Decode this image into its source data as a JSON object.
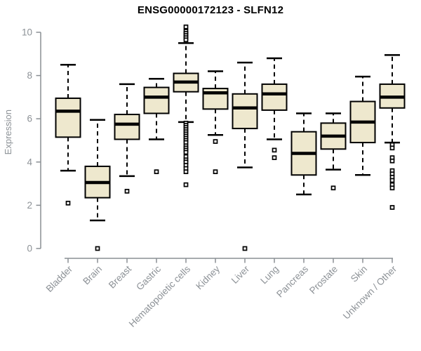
{
  "chart_data": {
    "type": "boxplot",
    "title": "ENSG00000172123 - SLFN12",
    "ylabel": "Expression",
    "xlabel": "",
    "ylim": [
      0,
      10
    ],
    "yticks": [
      0,
      2,
      4,
      6,
      8,
      10
    ],
    "grid": false,
    "legend": "none",
    "colors": {
      "box_fill": "#eee8ce",
      "box_stroke": "#000000",
      "median": "#000000",
      "whisker": "#000000",
      "outlier_stroke": "#000000",
      "outlier_fill": "#ffffff",
      "axis": "#8a8f94",
      "tick_label": "#8c9196",
      "title": "#000000"
    },
    "categories": [
      "Bladder",
      "Brain",
      "Breast",
      "Gastric",
      "Hematopoietic cells",
      "Kidney",
      "Liver",
      "Lung",
      "Pancreas",
      "Prostate",
      "Skin",
      "Unknown / Other"
    ],
    "series": [
      {
        "name": "Bladder",
        "low": 3.6,
        "q1": 5.15,
        "median": 6.35,
        "q3": 6.95,
        "high": 8.5,
        "outliers": [
          2.1
        ]
      },
      {
        "name": "Brain",
        "low": 1.3,
        "q1": 2.35,
        "median": 3.05,
        "q3": 3.8,
        "high": 5.95,
        "outliers": [
          0
        ]
      },
      {
        "name": "Breast",
        "low": 3.35,
        "q1": 5.05,
        "median": 5.75,
        "q3": 6.2,
        "high": 7.6,
        "outliers": [
          2.65
        ]
      },
      {
        "name": "Gastric",
        "low": 5.05,
        "q1": 6.25,
        "median": 7.0,
        "q3": 7.45,
        "high": 7.85,
        "outliers": [
          3.55
        ]
      },
      {
        "name": "Hematopoietic cells",
        "low": 5.85,
        "q1": 7.25,
        "median": 7.7,
        "q3": 8.1,
        "high": 9.5,
        "outliers": [
          10.25,
          10.05,
          9.95,
          9.85,
          9.75,
          9.65,
          5.8,
          5.7,
          5.6,
          5.5,
          5.4,
          5.3,
          5.2,
          5.1,
          5.0,
          4.9,
          4.75,
          4.65,
          4.55,
          4.45,
          4.25,
          4.1,
          4.0,
          3.85,
          3.7,
          3.55,
          2.95
        ]
      },
      {
        "name": "Kidney",
        "low": 5.25,
        "q1": 6.45,
        "median": 7.2,
        "q3": 7.4,
        "high": 8.2,
        "outliers": [
          4.95,
          3.55
        ]
      },
      {
        "name": "Liver",
        "low": 3.75,
        "q1": 5.55,
        "median": 6.5,
        "q3": 7.15,
        "high": 8.6,
        "outliers": [
          0
        ]
      },
      {
        "name": "Lung",
        "low": 5.05,
        "q1": 6.4,
        "median": 7.15,
        "q3": 7.6,
        "high": 8.8,
        "outliers": [
          4.55,
          4.2
        ]
      },
      {
        "name": "Pancreas",
        "low": 2.5,
        "q1": 3.4,
        "median": 4.4,
        "q3": 5.4,
        "high": 6.25,
        "outliers": []
      },
      {
        "name": "Prostate",
        "low": 3.65,
        "q1": 4.6,
        "median": 5.2,
        "q3": 5.8,
        "high": 6.25,
        "outliers": [
          2.8
        ]
      },
      {
        "name": "Skin",
        "low": 3.4,
        "q1": 4.9,
        "median": 5.85,
        "q3": 6.8,
        "high": 7.95,
        "outliers": []
      },
      {
        "name": "Unknown / Other",
        "low": 4.9,
        "q1": 6.5,
        "median": 7.0,
        "q3": 7.6,
        "high": 8.95,
        "outliers": [
          4.8,
          4.65,
          4.2,
          4.05,
          3.6,
          3.45,
          3.3,
          3.15,
          2.95,
          2.8,
          1.9
        ]
      }
    ]
  }
}
